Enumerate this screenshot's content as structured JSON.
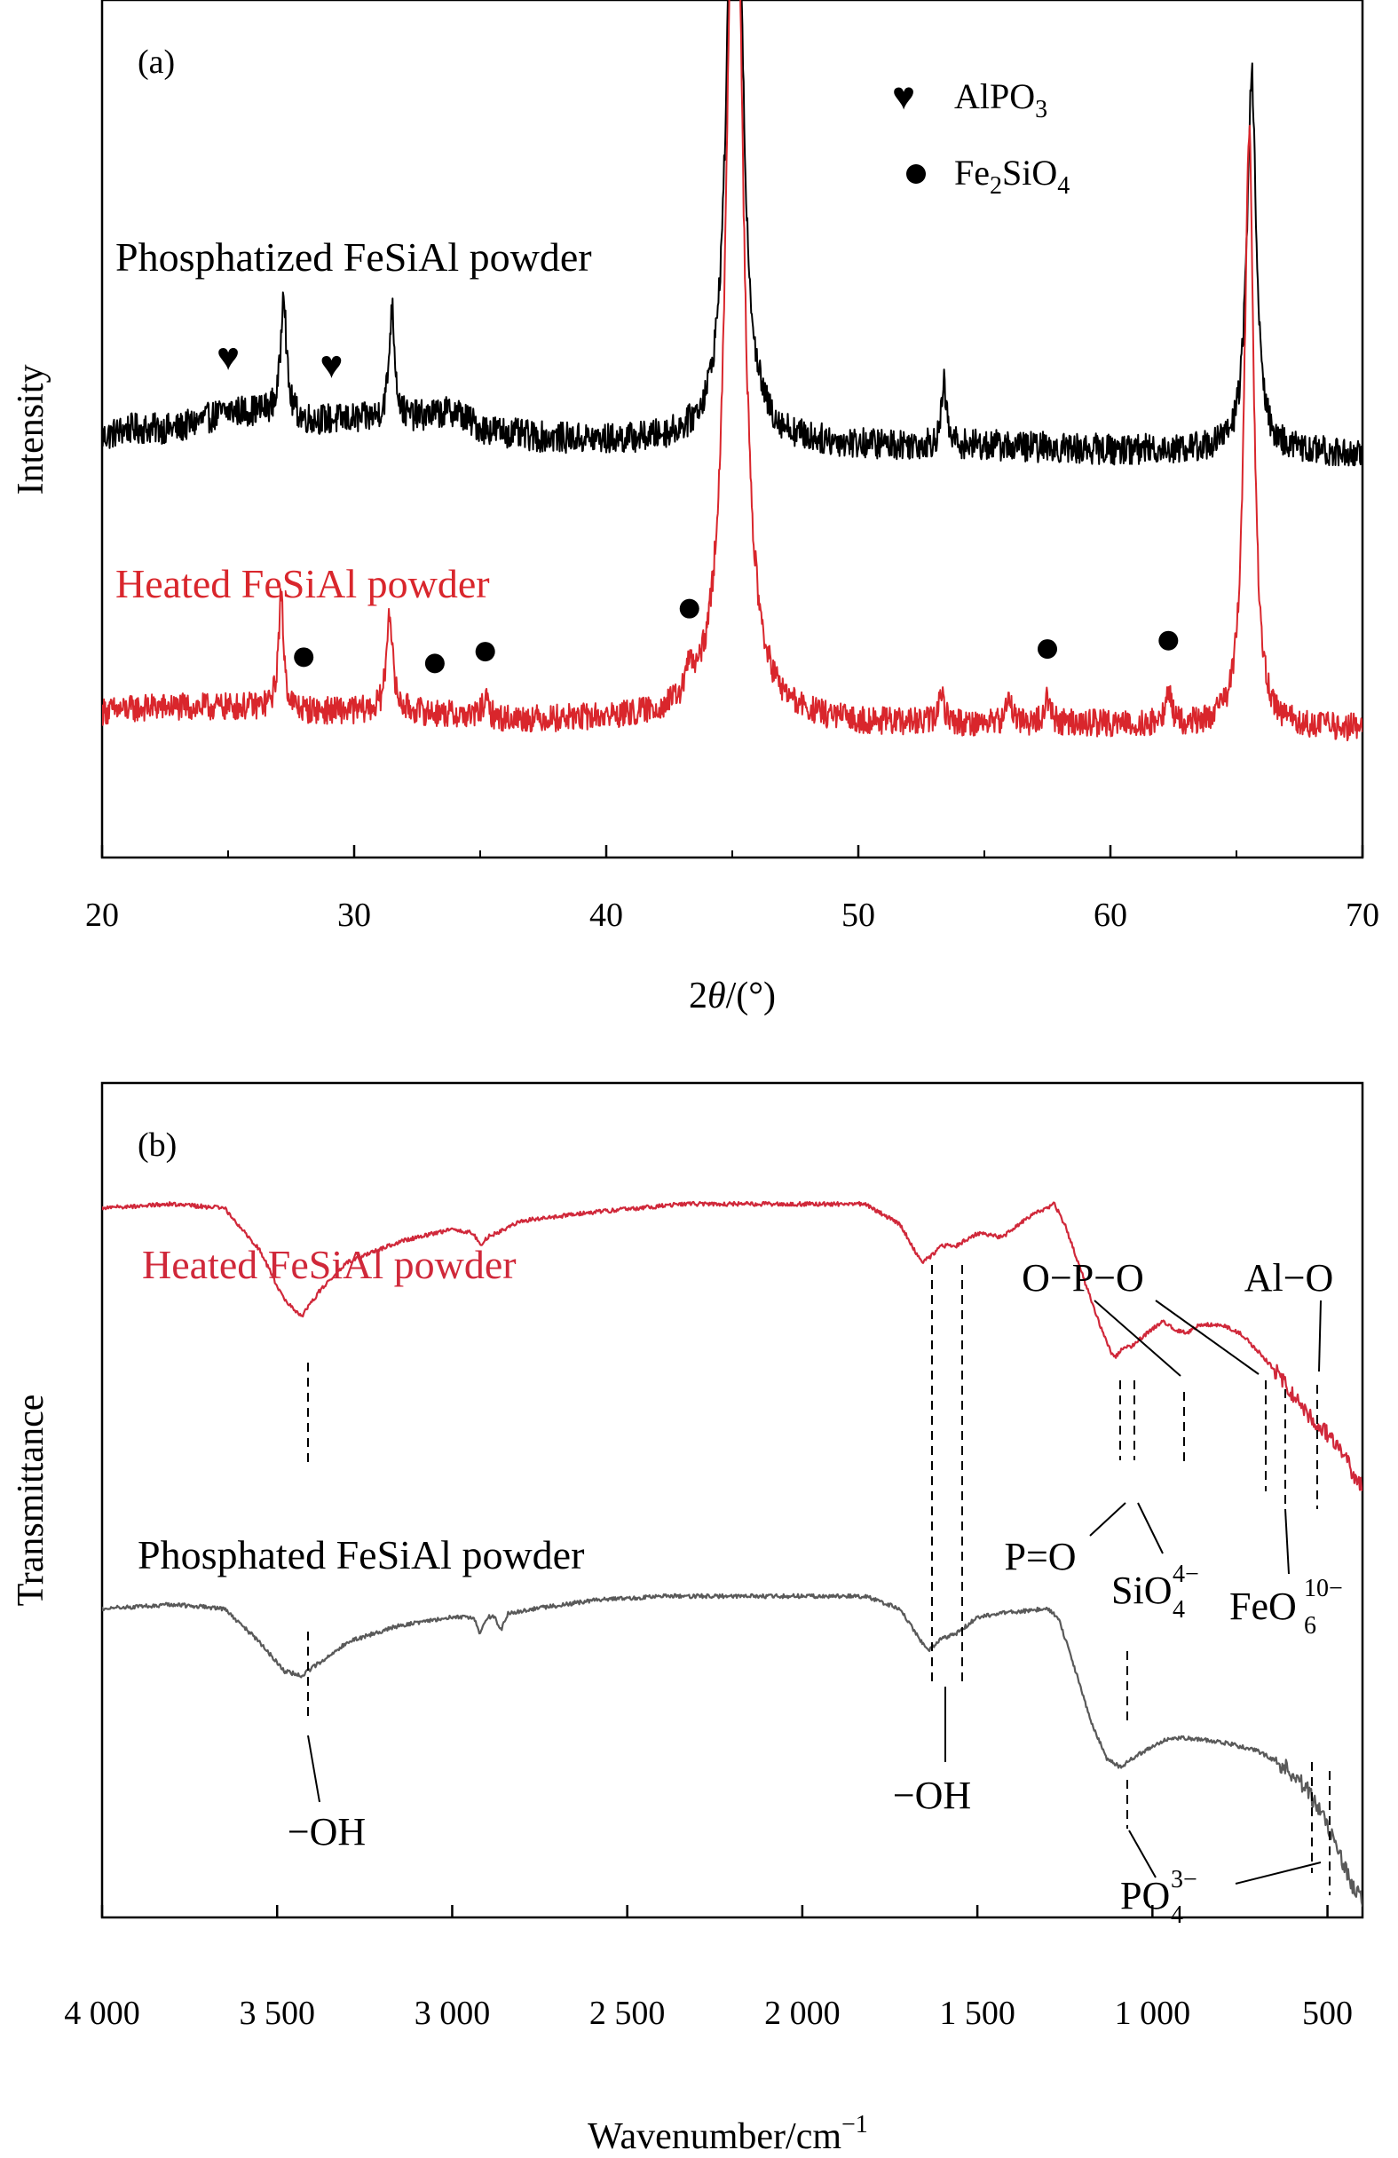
{
  "chart_data": [
    {
      "type": "line",
      "panel_label": "(a)",
      "xlabel_prefix": "2",
      "xlabel_symbol": "θ",
      "xlabel_suffix": "/(°)",
      "ylabel": "Intensity",
      "xlim": [
        20,
        70
      ],
      "ylim": [
        0,
        100
      ],
      "xticks": [
        20,
        30,
        40,
        50,
        60,
        70
      ],
      "grid": false,
      "legend_entries": [
        {
          "marker": "heart",
          "main": "AlPO",
          "sub": "3",
          "tail": ""
        },
        {
          "marker": "circle",
          "main": "Fe",
          "sub": "2",
          "tail": "SiO",
          "sub2": "4"
        }
      ],
      "series": [
        {
          "name": "Phosphatized FeSiAl powder",
          "color": "#000000",
          "baseline": 49,
          "noise": 1.8,
          "points": [
            [
              20,
              49
            ],
            [
              21,
              50
            ],
            [
              22,
              50
            ],
            [
              23,
              50
            ],
            [
              24,
              51
            ],
            [
              25,
              52
            ],
            [
              26,
              52
            ],
            [
              27,
              52
            ],
            [
              28,
              51
            ],
            [
              29,
              51
            ],
            [
              30,
              51
            ],
            [
              32,
              51
            ],
            [
              34,
              52
            ],
            [
              35,
              50
            ],
            [
              37,
              49
            ],
            [
              40,
              48.5
            ],
            [
              43,
              48.5
            ],
            [
              45,
              48.5
            ],
            [
              50,
              48
            ],
            [
              55,
              48
            ],
            [
              60,
              47.5
            ],
            [
              65,
              47.5
            ],
            [
              70,
              47
            ]
          ],
          "peaks": [
            {
              "x": 27.2,
              "h": 15,
              "w": 0.12
            },
            {
              "x": 31.5,
              "h": 13,
              "w": 0.14
            },
            {
              "x": 45.1,
              "h": 95,
              "w": 0.3
            },
            {
              "x": 53.4,
              "h": 7,
              "w": 0.12
            },
            {
              "x": 65.6,
              "h": 44,
              "w": 0.22
            }
          ],
          "markers": [
            {
              "type": "heart",
              "x": 25.0
            },
            {
              "type": "heart",
              "x": 29.1
            }
          ]
        },
        {
          "name": "Heated FeSiAl powder",
          "color": "#d9262c",
          "baseline": 17,
          "noise": 1.6,
          "points": [
            [
              20,
              17
            ],
            [
              22,
              17.5
            ],
            [
              24,
              17.5
            ],
            [
              26,
              17.5
            ],
            [
              28,
              17
            ],
            [
              30,
              17
            ],
            [
              32,
              17
            ],
            [
              34,
              16.5
            ],
            [
              36,
              16
            ],
            [
              40,
              16
            ],
            [
              44,
              16
            ],
            [
              50,
              15.5
            ],
            [
              55,
              15.5
            ],
            [
              60,
              15.5
            ],
            [
              65,
              15
            ],
            [
              70,
              15
            ]
          ],
          "peaks": [
            {
              "x": 27.1,
              "h": 13,
              "w": 0.13
            },
            {
              "x": 31.4,
              "h": 12,
              "w": 0.14
            },
            {
              "x": 35.2,
              "h": 2,
              "w": 0.15
            },
            {
              "x": 43.3,
              "h": 3,
              "w": 0.15
            },
            {
              "x": 45.1,
              "h": 120,
              "w": 0.35
            },
            {
              "x": 53.3,
              "h": 3.5,
              "w": 0.13
            },
            {
              "x": 56.0,
              "h": 3,
              "w": 0.14
            },
            {
              "x": 57.5,
              "h": 3,
              "w": 0.14
            },
            {
              "x": 62.3,
              "h": 4,
              "w": 0.13
            },
            {
              "x": 65.5,
              "h": 70,
              "w": 0.22
            }
          ],
          "markers": [
            {
              "type": "circle",
              "x": 28.0
            },
            {
              "type": "circle",
              "x": 33.2
            },
            {
              "type": "circle",
              "x": 35.2
            },
            {
              "type": "circle",
              "x": 43.3
            },
            {
              "type": "circle",
              "x": 57.5
            },
            {
              "type": "circle",
              "x": 62.3
            }
          ]
        }
      ]
    },
    {
      "type": "line",
      "panel_label": "(b)",
      "xlabel": "Wavenumber/cm",
      "xlabel_sup": "−1",
      "ylabel": "Transmittance",
      "xlim": [
        4000,
        400
      ],
      "ylim": [
        0,
        100
      ],
      "xticks": [
        4000,
        3500,
        3000,
        2500,
        2000,
        1500,
        1000,
        500
      ],
      "xtick_labels": [
        "4 000",
        "3 500",
        "3 000",
        "2 500",
        "2 000",
        "1 500",
        "1 000",
        "500"
      ],
      "grid": false,
      "series": [
        {
          "name": "Heated FeSiAl powder",
          "color": "#d0283a",
          "noise": 0.25,
          "points": [
            [
              4000,
              85
            ],
            [
              3800,
              85.5
            ],
            [
              3650,
              85
            ],
            [
              3550,
              80
            ],
            [
              3480,
              74
            ],
            [
              3430,
              72
            ],
            [
              3380,
              75
            ],
            [
              3300,
              78.5
            ],
            [
              3150,
              81
            ],
            [
              3000,
              82.5
            ],
            [
              2940,
              82
            ],
            [
              2920,
              80.5
            ],
            [
              2900,
              81.5
            ],
            [
              2800,
              83.5
            ],
            [
              2600,
              84.5
            ],
            [
              2340,
              85.5
            ],
            [
              2000,
              85.5
            ],
            [
              1820,
              85.5
            ],
            [
              1720,
              83
            ],
            [
              1660,
              78.5
            ],
            [
              1640,
              79
            ],
            [
              1600,
              80.5
            ],
            [
              1560,
              80.5
            ],
            [
              1500,
              82
            ],
            [
              1430,
              81.5
            ],
            [
              1350,
              84
            ],
            [
              1280,
              85.5
            ],
            [
              1250,
              83
            ],
            [
              1200,
              77
            ],
            [
              1150,
              71
            ],
            [
              1110,
              67
            ],
            [
              1090,
              68
            ],
            [
              1060,
              68.5
            ],
            [
              1000,
              70.5
            ],
            [
              970,
              71.5
            ],
            [
              940,
              70.5
            ],
            [
              900,
              70
            ],
            [
              870,
              71
            ],
            [
              800,
              71
            ],
            [
              750,
              70
            ],
            [
              700,
              68
            ],
            [
              670,
              66.5
            ],
            [
              620,
              64
            ],
            [
              580,
              61.5
            ],
            [
              540,
              59.5
            ],
            [
              500,
              58
            ],
            [
              450,
              55
            ],
            [
              410,
              52
            ],
            [
              400,
              51.5
            ]
          ]
        },
        {
          "name": "Phosphated FeSiAl powder",
          "color": "#595959",
          "noise": 0.25,
          "points": [
            [
              4000,
              37
            ],
            [
              3800,
              37.5
            ],
            [
              3650,
              37
            ],
            [
              3550,
              33
            ],
            [
              3480,
              29.5
            ],
            [
              3430,
              29
            ],
            [
              3380,
              30.5
            ],
            [
              3300,
              33
            ],
            [
              3150,
              35
            ],
            [
              3000,
              36
            ],
            [
              2940,
              36
            ],
            [
              2920,
              34
            ],
            [
              2900,
              36
            ],
            [
              2880,
              36
            ],
            [
              2860,
              34.5
            ],
            [
              2840,
              36.5
            ],
            [
              2600,
              38
            ],
            [
              2400,
              38.5
            ],
            [
              2000,
              38.5
            ],
            [
              1820,
              38.5
            ],
            [
              1720,
              37
            ],
            [
              1660,
              33
            ],
            [
              1640,
              32
            ],
            [
              1600,
              33.5
            ],
            [
              1560,
              34
            ],
            [
              1500,
              36
            ],
            [
              1420,
              36.5
            ],
            [
              1300,
              37
            ],
            [
              1270,
              36
            ],
            [
              1230,
              31
            ],
            [
              1180,
              24
            ],
            [
              1130,
              19
            ],
            [
              1090,
              18
            ],
            [
              1060,
              19
            ],
            [
              1000,
              20.5
            ],
            [
              950,
              21.5
            ],
            [
              900,
              21.5
            ],
            [
              800,
              21
            ],
            [
              700,
              20
            ],
            [
              620,
              18
            ],
            [
              560,
              15.5
            ],
            [
              520,
              12.5
            ],
            [
              490,
              10
            ],
            [
              460,
              7
            ],
            [
              430,
              4
            ],
            [
              400,
              2
            ]
          ]
        }
      ],
      "annotations": [
        {
          "label": "−OH",
          "x": 3430
        },
        {
          "label": "−OH",
          "x": 1640
        },
        {
          "label": "O−P−O",
          "x": 870
        },
        {
          "label": "Al−O",
          "x": 575
        },
        {
          "label": "P=O",
          "x": 1110
        },
        {
          "label": "SiO",
          "sub": "4",
          "sup": "4−",
          "x": 1075
        },
        {
          "label": "FeO",
          "sub": "6",
          "sup": "10−",
          "x": 650
        },
        {
          "label": "PO",
          "sub": "4",
          "sup": "3−",
          "x": 1080
        }
      ]
    }
  ]
}
